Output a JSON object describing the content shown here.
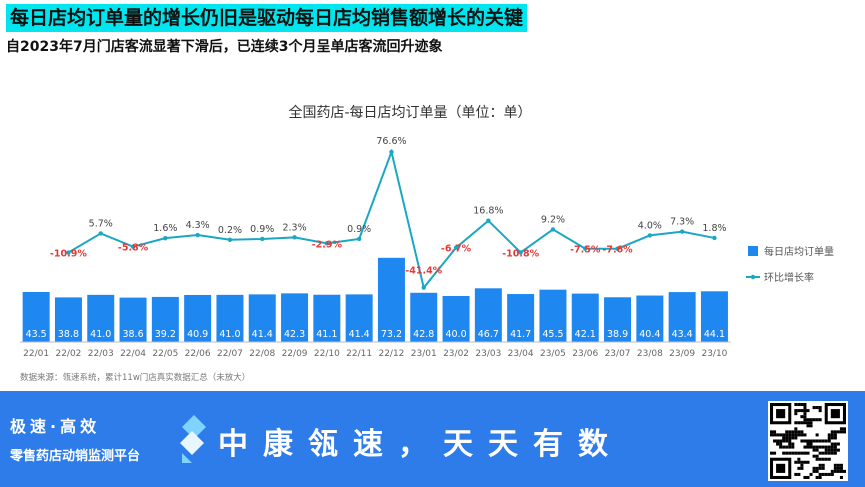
{
  "header": {
    "title": "每日店均订单量的增长仍旧是驱动每日店均销售额增长的关键",
    "subtitle": "自2023年7月门店客流显著下滑后，已连续3个月呈单店客流回升迹象"
  },
  "chart_data": {
    "type": "bar",
    "title": "全国药店-每日店均订单量（单位：单）",
    "categories": [
      "22/01",
      "22/02",
      "22/03",
      "22/04",
      "22/05",
      "22/06",
      "22/07",
      "22/08",
      "22/09",
      "22/10",
      "22/11",
      "22/12",
      "23/01",
      "23/02",
      "23/03",
      "23/04",
      "23/05",
      "23/06",
      "23/07",
      "23/08",
      "23/09",
      "23/10"
    ],
    "series": [
      {
        "name": "每日店均订单量",
        "type": "bar",
        "values": [
          43.5,
          38.8,
          41.0,
          38.6,
          39.2,
          40.9,
          41.0,
          41.4,
          42.3,
          41.1,
          41.4,
          73.2,
          42.8,
          40.0,
          46.7,
          41.7,
          45.5,
          42.1,
          38.9,
          40.4,
          43.4,
          44.1
        ]
      },
      {
        "name": "环比增长率",
        "type": "line",
        "values": [
          null,
          -10.9,
          5.7,
          -5.8,
          1.6,
          4.3,
          0.2,
          0.9,
          2.3,
          -2.9,
          0.9,
          76.6,
          -41.4,
          -6.7,
          16.8,
          -10.8,
          9.2,
          -7.5,
          -7.6,
          4.0,
          7.3,
          1.8
        ],
        "labels": [
          "",
          "-10.9%",
          "5.7%",
          "-5.8%",
          "1.6%",
          "4.3%",
          "0.2%",
          "0.9%",
          "2.3%",
          "-2.9%",
          "0.9%",
          "76.6%",
          "-41.4%",
          "-6.7%",
          "16.8%",
          "-10.8%",
          "9.2%",
          "-7.5%",
          "-7.6%",
          "4.0%",
          "7.3%",
          "1.8%"
        ]
      }
    ],
    "bar_labels": [
      "43.5",
      "38.8",
      "41.0",
      "38.6",
      "39.2",
      "40.9",
      "41.0",
      "41.4",
      "42.3",
      "41.1",
      "41.4",
      "73.2",
      "42.8",
      "40.0",
      "46.7",
      "41.7",
      "45.5",
      "42.1",
      "38.9",
      "40.4",
      "43.4",
      "44.1"
    ],
    "legend": "right",
    "grid": false,
    "source": "数据来源：瓴速系统，累计11w门店真实数据汇总（未放大）",
    "colors": {
      "bar": "#1e88f0",
      "line": "#1aa7c4",
      "negative": "#e53935",
      "positive": "#444444"
    }
  },
  "footer": {
    "speed": "极速·高效",
    "desc": "零售药店动销监测平台",
    "slogan": "中康瓴速，天天有数"
  }
}
